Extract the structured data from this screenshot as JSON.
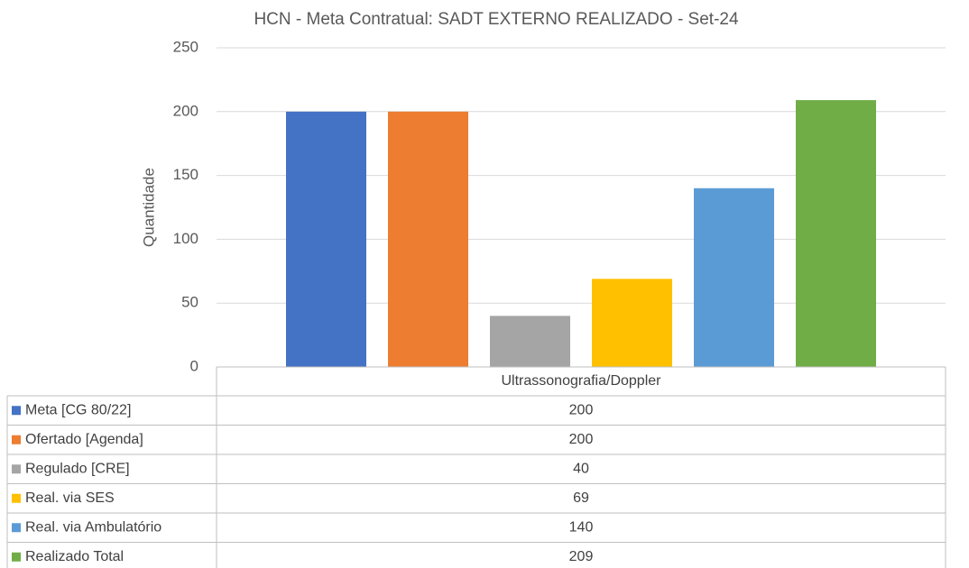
{
  "chart_data": {
    "type": "bar",
    "title": "HCN - Meta Contratual: SADT EXTERNO REALIZADO - Set-24",
    "y_label": "Quantidade",
    "categories": [
      "Ultrassonografia/Doppler"
    ],
    "series": [
      {
        "name": "Meta [CG 80/22]",
        "color": "#4472c4",
        "values": [
          200
        ]
      },
      {
        "name": "Ofertado [Agenda]",
        "color": "#ed7d31",
        "values": [
          200
        ]
      },
      {
        "name": "Regulado [CRE]",
        "color": "#a5a5a5",
        "values": [
          40
        ]
      },
      {
        "name": "Real. via SES",
        "color": "#ffc000",
        "values": [
          69
        ]
      },
      {
        "name": "Real. via Ambulatório",
        "color": "#5b9bd5",
        "values": [
          140
        ]
      },
      {
        "name": "Realizado Total",
        "color": "#70ad47",
        "values": [
          209
        ]
      }
    ],
    "ylim": [
      0,
      250
    ],
    "yticks": [
      0,
      50,
      100,
      150,
      200,
      250
    ],
    "grid": true,
    "data_table": true
  }
}
